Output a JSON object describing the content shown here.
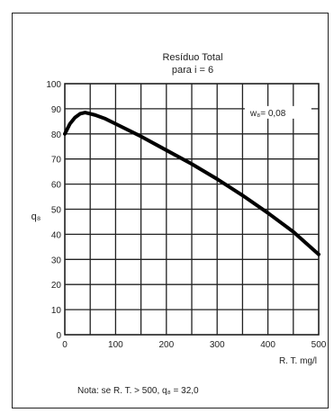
{
  "chart_data": {
    "type": "line",
    "title": "Resíduo Total",
    "subtitle": "para i = 6",
    "ylabel": "q₈",
    "xlabel": "R. T. mg/l",
    "legend_label": "w₈= 0,08",
    "note": "Nota: se R. T. > 500, q₈ = 32,0",
    "xlim": [
      0,
      500
    ],
    "ylim": [
      0,
      100
    ],
    "x_ticks": [
      0,
      100,
      200,
      300,
      400,
      500
    ],
    "y_ticks": [
      0,
      10,
      20,
      30,
      40,
      50,
      60,
      70,
      80,
      90,
      100
    ],
    "grid": true,
    "series": [
      {
        "color": "#000000",
        "x": [
          0,
          10,
          20,
          30,
          40,
          50,
          60,
          80,
          100,
          150,
          200,
          250,
          300,
          350,
          400,
          450,
          500
        ],
        "y": [
          80,
          84,
          86.5,
          88,
          88.5,
          88,
          87.5,
          86,
          84,
          79,
          73.5,
          68,
          62,
          55.5,
          48.5,
          41,
          32
        ]
      }
    ]
  }
}
